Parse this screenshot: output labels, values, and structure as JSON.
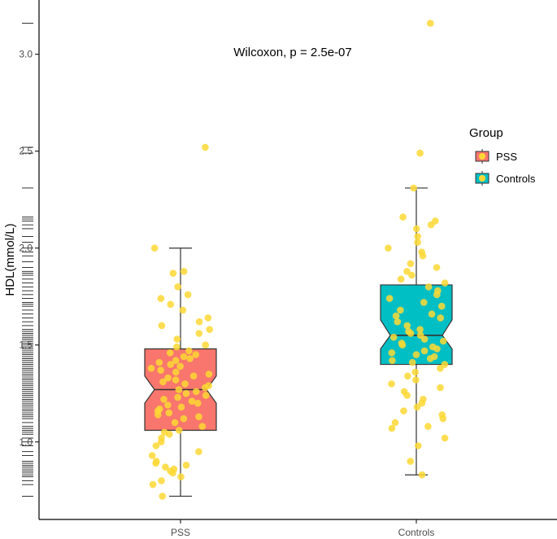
{
  "chart_data": {
    "type": "box",
    "title": "",
    "xlabel": "",
    "ylabel": "HDL(mmol/L)",
    "ylim": [
      0.6,
      3.28
    ],
    "yticks": [
      "1.0",
      "1.5",
      "2.0",
      "2.5",
      "3.0"
    ],
    "categories": [
      "PSS",
      "Controls"
    ],
    "annotation": "Wilcoxon, p = 2.5e-07",
    "legend": {
      "title": "Group",
      "position": "right",
      "entries": [
        "PSS",
        "Controls"
      ]
    },
    "grid": false,
    "colors": {
      "PSS": "#f8766d",
      "Controls": "#00bfc4",
      "points": "#fdd835"
    },
    "boxes": [
      {
        "name": "PSS",
        "whisker_low": 0.72,
        "q1": 1.06,
        "median": 1.27,
        "q3": 1.48,
        "whisker_high": 2.0,
        "notch_low": 1.2,
        "notch_high": 1.34,
        "points": [
          2.52,
          2.0,
          1.88,
          1.87,
          1.8,
          1.76,
          1.74,
          1.71,
          1.68,
          1.64,
          1.62,
          1.6,
          1.58,
          1.56,
          1.53,
          1.5,
          1.49,
          1.47,
          1.46,
          1.45,
          1.44,
          1.43,
          1.42,
          1.41,
          1.4,
          1.39,
          1.38,
          1.37,
          1.36,
          1.35,
          1.34,
          1.33,
          1.32,
          1.31,
          1.3,
          1.29,
          1.28,
          1.27,
          1.26,
          1.25,
          1.24,
          1.23,
          1.22,
          1.21,
          1.2,
          1.19,
          1.18,
          1.17,
          1.16,
          1.15,
          1.14,
          1.13,
          1.12,
          1.1,
          1.08,
          1.06,
          1.05,
          1.04,
          1.02,
          1.0,
          0.98,
          0.95,
          0.93,
          0.9,
          0.89,
          0.88,
          0.87,
          0.86,
          0.85,
          0.84,
          0.82,
          0.8,
          0.78,
          0.72
        ]
      },
      {
        "name": "Controls",
        "whisker_low": 0.83,
        "q1": 1.4,
        "median": 1.55,
        "q3": 1.81,
        "whisker_high": 2.31,
        "notch_low": 1.48,
        "notch_high": 1.63,
        "points": [
          3.16,
          2.49,
          2.31,
          2.16,
          2.14,
          2.12,
          2.1,
          2.06,
          2.03,
          2.0,
          1.98,
          1.96,
          1.92,
          1.9,
          1.88,
          1.86,
          1.84,
          1.82,
          1.8,
          1.78,
          1.76,
          1.74,
          1.72,
          1.7,
          1.68,
          1.66,
          1.65,
          1.64,
          1.62,
          1.6,
          1.58,
          1.57,
          1.56,
          1.55,
          1.54,
          1.53,
          1.52,
          1.51,
          1.5,
          1.49,
          1.48,
          1.47,
          1.46,
          1.45,
          1.44,
          1.43,
          1.42,
          1.41,
          1.4,
          1.38,
          1.36,
          1.34,
          1.32,
          1.3,
          1.28,
          1.26,
          1.24,
          1.22,
          1.2,
          1.18,
          1.16,
          1.14,
          1.12,
          1.1,
          1.08,
          1.07,
          1.02,
          0.98,
          0.9,
          0.83
        ]
      }
    ],
    "rug": [
      3.16,
      2.52,
      2.49,
      2.31,
      2.16,
      2.15,
      2.14,
      2.12,
      2.1,
      2.06,
      2.03,
      2.0,
      1.98,
      1.96,
      1.93,
      1.9,
      1.88,
      1.87,
      1.86,
      1.84,
      1.82,
      1.8,
      1.78,
      1.76,
      1.74,
      1.72,
      1.71,
      1.7,
      1.68,
      1.66,
      1.64,
      1.62,
      1.6,
      1.58,
      1.57,
      1.56,
      1.55,
      1.54,
      1.53,
      1.52,
      1.51,
      1.5,
      1.49,
      1.48,
      1.47,
      1.46,
      1.45,
      1.44,
      1.43,
      1.42,
      1.41,
      1.4,
      1.39,
      1.38,
      1.37,
      1.36,
      1.35,
      1.34,
      1.33,
      1.32,
      1.31,
      1.3,
      1.29,
      1.28,
      1.27,
      1.26,
      1.25,
      1.24,
      1.23,
      1.22,
      1.21,
      1.2,
      1.19,
      1.18,
      1.17,
      1.16,
      1.15,
      1.14,
      1.13,
      1.12,
      1.1,
      1.08,
      1.07,
      1.06,
      1.05,
      1.04,
      1.02,
      1.0,
      0.98,
      0.95,
      0.93,
      0.9,
      0.89,
      0.88,
      0.87,
      0.86,
      0.85,
      0.84,
      0.83,
      0.82,
      0.8,
      0.78,
      0.72
    ]
  }
}
